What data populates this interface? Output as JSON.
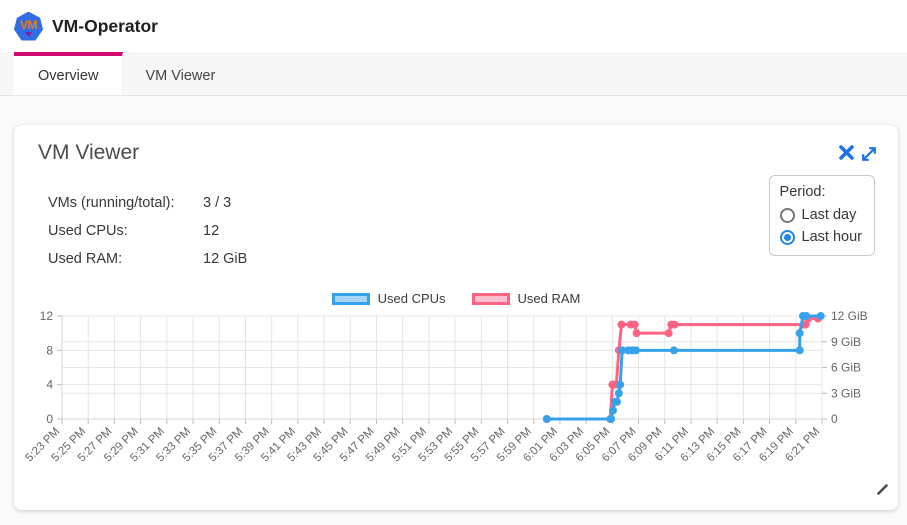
{
  "header": {
    "app_title": "VM-Operator",
    "logo_text": "VM"
  },
  "tabs": [
    {
      "label": "Overview",
      "active": true
    },
    {
      "label": "VM Viewer",
      "active": false
    }
  ],
  "card": {
    "title": "VM Viewer",
    "stats": [
      {
        "label": "VMs (running/total):",
        "value": "3 / 3"
      },
      {
        "label": "Used CPUs:",
        "value": "12"
      },
      {
        "label": "Used RAM:",
        "value": "12 GiB"
      }
    ],
    "period": {
      "label": "Period:",
      "options": [
        {
          "label": "Last day",
          "selected": false
        },
        {
          "label": "Last hour",
          "selected": true
        }
      ]
    }
  },
  "colors": {
    "accent_pink_tab": "#d00a6e",
    "icon_blue": "#1a73e8",
    "radio_blue": "#1e88e5",
    "grid": "#e5e5e5",
    "tick": "#bdbdbd",
    "tick_text": "#666666"
  },
  "chart_data": {
    "type": "line",
    "title": "",
    "x_unit": "minutes after 5:23 PM",
    "x_range": [
      0,
      58
    ],
    "x_tick_step": 2,
    "x_tick_labels": [
      "5:23 PM",
      "5:25 PM",
      "5:27 PM",
      "5:29 PM",
      "5:31 PM",
      "5:33 PM",
      "5:35 PM",
      "5:37 PM",
      "5:39 PM",
      "5:41 PM",
      "5:43 PM",
      "5:45 PM",
      "5:47 PM",
      "5:49 PM",
      "5:51 PM",
      "5:53 PM",
      "5:55 PM",
      "5:57 PM",
      "5:59 PM",
      "6:01 PM",
      "6:03 PM",
      "6:05 PM",
      "6:07 PM",
      "6:09 PM",
      "6:11 PM",
      "6:13 PM",
      "6:15 PM",
      "6:17 PM",
      "6:19 PM",
      "6:21 PM"
    ],
    "left_axis": {
      "ticks": [
        0,
        4,
        8,
        12
      ],
      "range": [
        0,
        12
      ]
    },
    "right_axis": {
      "tick_values": [
        0,
        3,
        6,
        9,
        12
      ],
      "tick_labels": [
        "0",
        "3 GiB",
        "6 GiB",
        "9 GiB",
        "12 GiB"
      ],
      "range": [
        0,
        12
      ]
    },
    "grid": true,
    "legend_position": "top",
    "series": [
      {
        "name": "Used CPUs",
        "axis": "left",
        "color": "#36a2eb",
        "fill": "#a9d5f5",
        "points": [
          [
            37,
            0
          ],
          [
            41.9,
            0
          ],
          [
            42.05,
            1
          ],
          [
            42.2,
            2
          ],
          [
            42.35,
            2
          ],
          [
            42.5,
            3
          ],
          [
            42.6,
            4
          ],
          [
            42.75,
            8
          ],
          [
            43.2,
            8
          ],
          [
            43.5,
            8
          ],
          [
            43.8,
            8
          ],
          [
            46.7,
            8
          ],
          [
            56.3,
            8
          ],
          [
            56.3,
            10
          ],
          [
            56.55,
            12
          ],
          [
            56.8,
            12
          ],
          [
            57.9,
            12
          ]
        ]
      },
      {
        "name": "Used RAM",
        "axis": "right",
        "color": "#ff6384",
        "fill": "#fbc0ce",
        "points": [
          [
            37,
            0
          ],
          [
            41.85,
            0
          ],
          [
            42.0,
            4
          ],
          [
            42.3,
            4
          ],
          [
            42.5,
            8
          ],
          [
            42.7,
            11
          ],
          [
            43.4,
            11
          ],
          [
            43.7,
            11
          ],
          [
            43.85,
            10
          ],
          [
            46.3,
            10
          ],
          [
            46.5,
            11
          ],
          [
            46.75,
            11
          ],
          [
            56.6,
            11
          ],
          [
            56.75,
            11
          ],
          [
            56.95,
            11.7
          ],
          [
            57.7,
            11.7
          ]
        ]
      }
    ]
  }
}
